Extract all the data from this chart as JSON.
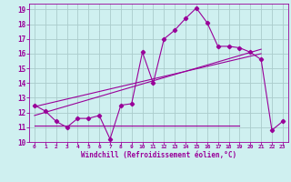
{
  "xlabel": "Windchill (Refroidissement éolien,°C)",
  "background_color": "#cff0f0",
  "grid_color": "#aacccc",
  "line_color": "#990099",
  "xlim": [
    -0.5,
    23.5
  ],
  "ylim": [
    10,
    19.4
  ],
  "xticks": [
    0,
    1,
    2,
    3,
    4,
    5,
    6,
    7,
    8,
    9,
    10,
    11,
    12,
    13,
    14,
    15,
    16,
    17,
    18,
    19,
    20,
    21,
    22,
    23
  ],
  "yticks": [
    10,
    11,
    12,
    13,
    14,
    15,
    16,
    17,
    18,
    19
  ],
  "curve1_x": [
    0,
    1,
    2,
    3,
    4,
    5,
    6,
    7,
    8,
    9,
    10,
    11,
    12,
    13,
    14,
    15,
    16,
    17,
    18,
    19,
    20,
    21,
    22,
    23
  ],
  "curve1_y": [
    12.5,
    12.1,
    11.4,
    11.0,
    11.6,
    11.6,
    11.8,
    10.2,
    12.5,
    12.6,
    16.1,
    14.0,
    17.0,
    17.6,
    18.4,
    19.1,
    18.1,
    16.5,
    16.5,
    16.4,
    16.1,
    15.6,
    10.8,
    11.4
  ],
  "curve2_x": [
    0,
    19
  ],
  "curve2_y": [
    11.1,
    11.1
  ],
  "curve3_x": [
    0,
    21
  ],
  "curve3_y": [
    11.8,
    16.3
  ],
  "curve4_x": [
    0,
    21
  ],
  "curve4_y": [
    12.4,
    16.0
  ]
}
